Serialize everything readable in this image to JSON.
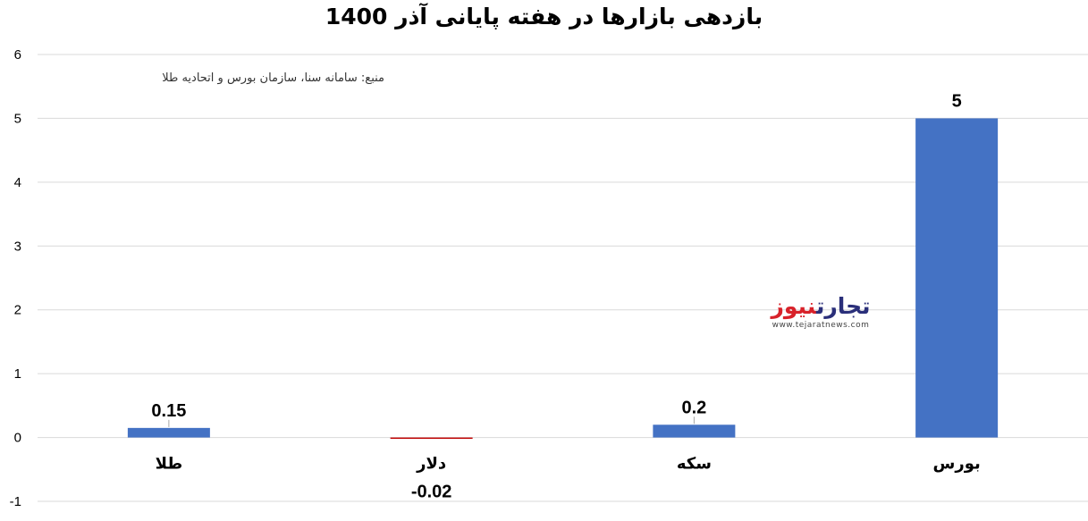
{
  "chart_data": {
    "type": "bar",
    "title": "بازدهی بازارها در هفته پایانی آذر 1400",
    "categories": [
      "طلا",
      "دلار",
      "سکه",
      "بورس"
    ],
    "values": [
      0.15,
      -0.02,
      0.2,
      5
    ],
    "value_labels": [
      "0.15",
      "-0.02",
      "0.2",
      "5"
    ],
    "ylim": [
      -1,
      6
    ],
    "yticks": [
      -1,
      0,
      1,
      2,
      3,
      4,
      5,
      6
    ],
    "grid": true,
    "legend": "none",
    "colors": {
      "positive": "#4472c4",
      "negative": "#c00000"
    }
  },
  "source_note": "منبع: سامانه سنا، سازمان بورس و اتحادیه طلا",
  "logo": {
    "name_dark": "تجارت",
    "name_red": "نیوز",
    "url": "www.tejaratnews.com"
  }
}
